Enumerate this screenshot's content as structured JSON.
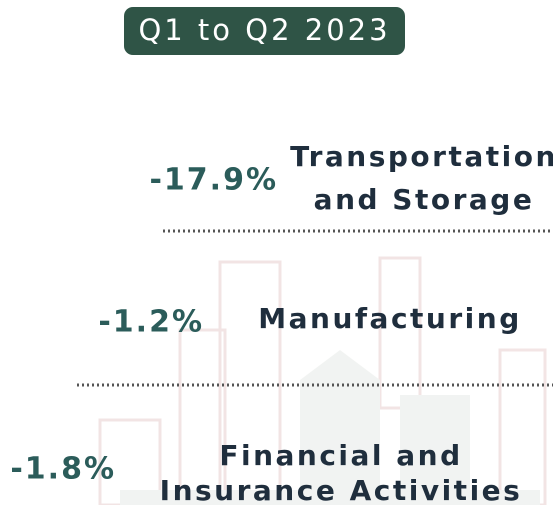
{
  "header": {
    "title": "Q1 to Q2 2023"
  },
  "items": [
    {
      "change": "-17.9%",
      "label": [
        "Transportation",
        "and Storage"
      ]
    },
    {
      "change": "-1.2%",
      "label": [
        "Manufacturing"
      ]
    },
    {
      "change": "-1.8%",
      "label": [
        "Financial and",
        "Insurance Activities"
      ]
    }
  ]
}
